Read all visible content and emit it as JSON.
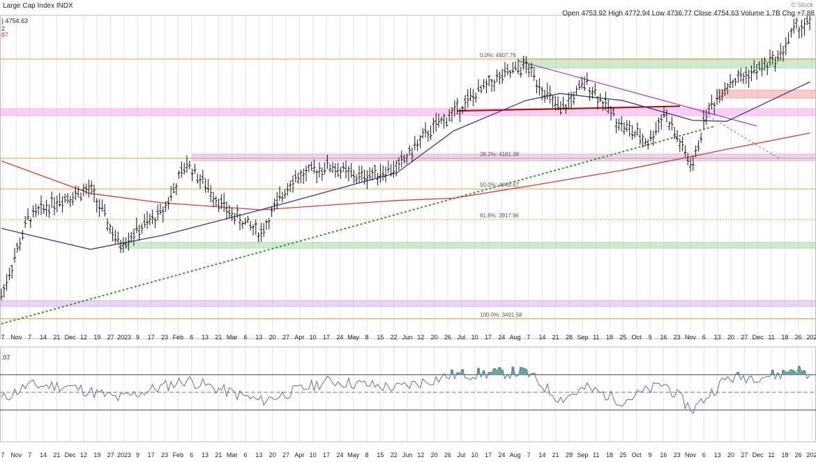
{
  "header": {
    "title": "Large Cap Index",
    "ticker": "INDX",
    "watermark": "© Stock",
    "ohlc": {
      "open_label": "Open",
      "open": "4753.92",
      "high_label": "High",
      "high": "4772.94",
      "low_label": "Low",
      "low": "4736.77",
      "close_label": "Close",
      "close": "4754.63",
      "volume_label": "Volume",
      "volume": "1.7B",
      "chg_label": "Chg",
      "chg": "+7.88"
    },
    "last_price": ") 4754.63",
    "legend_frag1": "2",
    "legend_frag2": "87"
  },
  "colors": {
    "bars": "#111111",
    "ma_short": "#3a3a8a",
    "ma_long": "#d43a3a",
    "fib_line": "#e8a040",
    "trend_dashed": "#2a9a2a",
    "downtrend": "#b050c8",
    "neckline": "#a01818",
    "zone_green": "#a8d8a8",
    "zone_pink": "#f7a8ec",
    "zone_lavender": "#d8b0f0",
    "zone_red": "#f4a0a0",
    "rsi_line": "#5a6fa8",
    "rsi_fill": "#6aa6a0"
  },
  "chart_data": [
    {
      "type": "line",
      "title": "Large Cap Index",
      "note": "daily price bars with moving averages, Fibonacci retracements and trendlines",
      "x_tick_labels": [
        "7",
        "Nov",
        "7",
        "14",
        "21",
        "Dec",
        "12",
        "19",
        "27",
        "2023",
        "9",
        "17",
        "23",
        "Feb",
        "6",
        "13",
        "21",
        "Mar",
        "6",
        "13",
        "20",
        "27",
        "Apr",
        "10",
        "17",
        "24",
        "May",
        "8",
        "15",
        "22",
        "Jun",
        "12",
        "20",
        "26",
        "Jul",
        "10",
        "17",
        "24",
        "Aug",
        "7",
        "14",
        "21",
        "28",
        "Sep",
        "11",
        "18",
        "25",
        "Oct",
        "9",
        "16",
        "23",
        "Nov",
        "6",
        "13",
        "20",
        "27",
        "Dec",
        "11",
        "18",
        "26",
        "202"
      ],
      "ylim": [
        3430,
        4790
      ],
      "series": [
        {
          "x": [
            "2022-10-27",
            "2022-11-10",
            "2022-11-25",
            "2022-12-13",
            "2022-12-28",
            "2023-01-20",
            "2023-02-02",
            "2023-02-24",
            "2023-03-13",
            "2023-03-29",
            "2023-04-18",
            "2023-05-03",
            "2023-05-24",
            "2023-06-09",
            "2023-06-23",
            "2023-07-13",
            "2023-07-31",
            "2023-08-18",
            "2023-09-01",
            "2023-09-20",
            "2023-10-04",
            "2023-10-12",
            "2023-10-27",
            "2023-11-03",
            "2023-11-14",
            "2023-11-30",
            "2023-12-12",
            "2023-12-20",
            "2023-12-28"
          ],
          "values": [
            3590,
            3920,
            4000,
            4050,
            3810,
            3950,
            4160,
            3950,
            3860,
            4090,
            4150,
            4100,
            4140,
            4290,
            4380,
            4510,
            4580,
            4380,
            4510,
            4320,
            4250,
            4380,
            4140,
            4370,
            4500,
            4560,
            4620,
            4740,
            4760
          ]
        },
        {
          "x": [
            "2022-10-27",
            "2022-12-13",
            "2023-01-20",
            "2023-03-13",
            "2023-04-18",
            "2023-05-24",
            "2023-06-23",
            "2023-07-31",
            "2023-08-18",
            "2023-09-20",
            "2023-10-27",
            "2023-11-14",
            "2023-12-28"
          ],
          "values": [
            3880,
            3790,
            3850,
            3960,
            4040,
            4120,
            4300,
            4430,
            4460,
            4430,
            4345,
            4340,
            4510
          ]
        },
        {
          "x": [
            "2022-10-27",
            "2022-12-13",
            "2023-01-20",
            "2023-03-13",
            "2023-04-18",
            "2023-05-24",
            "2023-06-23",
            "2023-07-31",
            "2023-09-20",
            "2023-10-27",
            "2023-11-14",
            "2023-12-28"
          ],
          "values": [
            4170,
            4030,
            3990,
            3960,
            3980,
            4000,
            4010,
            4060,
            4130,
            4190,
            4220,
            4290
          ]
        }
      ],
      "fib_levels": [
        {
          "label": "0.0%: 4607.76",
          "value": 4607.76
        },
        {
          "label": "38.2%: 4181.38",
          "value": 4181.38
        },
        {
          "label": "50.0%: 4049.67",
          "value": 4049.67
        },
        {
          "label": "61.8%: 3917.96",
          "value": 3917.96
        },
        {
          "label": "100.0%: 3491.58",
          "value": 3491.58
        }
      ]
    },
    {
      "type": "line",
      "note": "14-period RSI",
      "label_frag": ".07",
      "ylim": [
        0,
        100
      ],
      "reference_lines": [
        70,
        50,
        30
      ],
      "series": [
        {
          "x": [
            "2022-10-27",
            "2022-11-10",
            "2022-12-01",
            "2022-12-28",
            "2023-02-02",
            "2023-03-13",
            "2023-04-18",
            "2023-05-24",
            "2023-06-23",
            "2023-07-31",
            "2023-08-18",
            "2023-09-01",
            "2023-09-20",
            "2023-10-12",
            "2023-10-27",
            "2023-11-14",
            "2023-12-12",
            "2023-12-20",
            "2023-12-28"
          ],
          "values": [
            42,
            58,
            57,
            43,
            64,
            40,
            63,
            55,
            70,
            73,
            42,
            55,
            40,
            60,
            30,
            66,
            70,
            78,
            68
          ]
        }
      ]
    }
  ]
}
